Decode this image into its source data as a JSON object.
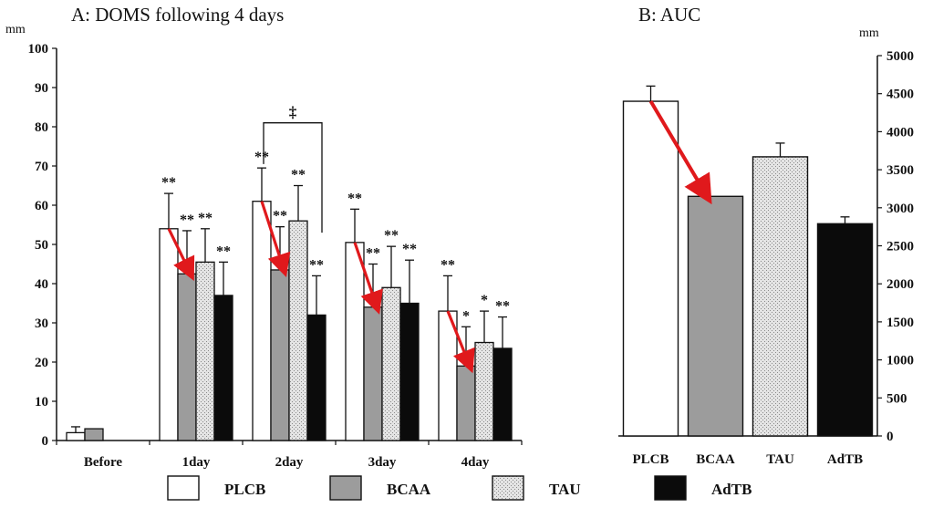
{
  "colors": {
    "PLCB": "#ffffff",
    "BCAA": "#9c9c9c",
    "TAU": "#e2e2e2",
    "AdTB": "#0b0b0b",
    "arrow": "#e0191c",
    "axis": "#111111"
  },
  "chart_data": [
    {
      "type": "bar",
      "title": "A: DOMS following 4 days",
      "ylabel": "mm",
      "ylim": [
        0,
        100
      ],
      "yticks": [
        0,
        10,
        20,
        30,
        40,
        50,
        60,
        70,
        80,
        90,
        100
      ],
      "categories": [
        "Before",
        "1day",
        "2day",
        "3day",
        "4day"
      ],
      "series": [
        {
          "name": "PLCB",
          "values": [
            2,
            54,
            61,
            50.5,
            33
          ],
          "errors": [
            1.5,
            9,
            8.5,
            8.5,
            9
          ]
        },
        {
          "name": "BCAA",
          "values": [
            3,
            42.5,
            43.5,
            34,
            19
          ],
          "errors": [
            0,
            11,
            11,
            11,
            10
          ]
        },
        {
          "name": "TAU",
          "values": [
            0,
            45.5,
            56,
            39,
            25
          ],
          "errors": [
            0,
            8.5,
            9,
            10.5,
            8
          ]
        },
        {
          "name": "AdTB",
          "values": [
            0,
            37,
            32,
            35,
            23.5
          ],
          "errors": [
            0,
            8.5,
            10,
            11,
            8
          ]
        }
      ],
      "significance": [
        {
          "category": "1day",
          "marks": [
            "**",
            "**",
            "**",
            "**"
          ]
        },
        {
          "category": "2day",
          "marks": [
            "**",
            "**",
            "**",
            "**"
          ]
        },
        {
          "category": "3day",
          "marks": [
            "**",
            "**",
            "**",
            "**"
          ]
        },
        {
          "category": "4day",
          "marks": [
            "**",
            "*",
            "*",
            "**"
          ]
        }
      ],
      "bracket_mark": "‡",
      "bracket": {
        "category": "2day",
        "from": "PLCB",
        "to": "AdTB"
      },
      "arrows": [
        {
          "category": "1day",
          "from": "PLCB",
          "to": "BCAA"
        },
        {
          "category": "2day",
          "from": "PLCB",
          "to": "BCAA"
        },
        {
          "category": "3day",
          "from": "PLCB",
          "to": "BCAA"
        },
        {
          "category": "4day",
          "from": "PLCB",
          "to": "BCAA"
        }
      ],
      "grid": false
    },
    {
      "type": "bar",
      "title": "B: AUC",
      "ylabel": "mm",
      "ylim": [
        0,
        5000
      ],
      "yticks": [
        0,
        500,
        1000,
        1500,
        2000,
        2500,
        3000,
        3500,
        4000,
        4500,
        5000
      ],
      "axis_side": "right",
      "categories": [
        "PLCB",
        "BCAA",
        "TAU",
        "AdTB"
      ],
      "values": [
        4400,
        3150,
        3670,
        2790
      ],
      "errors": [
        200,
        0,
        180,
        90
      ],
      "arrows": [
        {
          "from": "PLCB",
          "to": "BCAA"
        }
      ],
      "grid": false
    }
  ],
  "legend": {
    "placement": "bottom",
    "items": [
      "PLCB",
      "BCAA",
      "TAU",
      "AdTB"
    ]
  }
}
